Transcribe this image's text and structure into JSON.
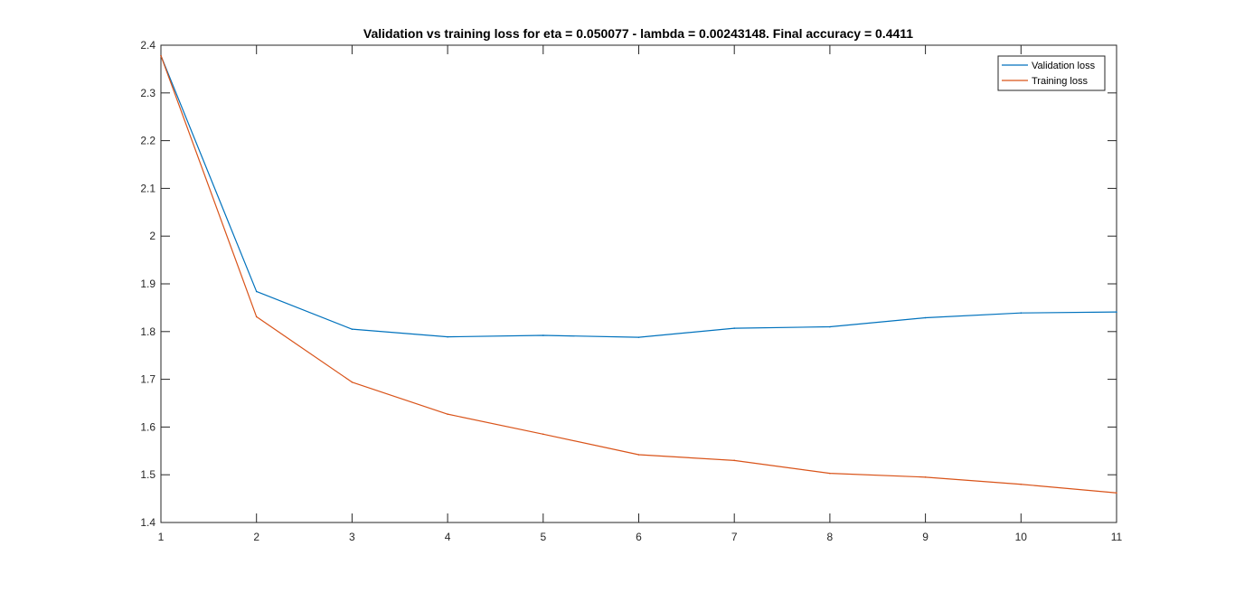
{
  "chart_data": {
    "type": "line",
    "title": "Validation vs training loss for eta = 0.050077 - lambda = 0.00243148. Final accuracy = 0.4411",
    "xlabel": "",
    "ylabel": "",
    "x": [
      1,
      2,
      3,
      4,
      5,
      6,
      7,
      8,
      9,
      10,
      11
    ],
    "xlim": [
      1,
      11
    ],
    "ylim": [
      1.4,
      2.4
    ],
    "xticks": [
      1,
      2,
      3,
      4,
      5,
      6,
      7,
      8,
      9,
      10,
      11
    ],
    "yticks": [
      1.4,
      1.5,
      1.6,
      1.7,
      1.8,
      1.9,
      2,
      2.1,
      2.2,
      2.3,
      2.4
    ],
    "xtick_labels": [
      "1",
      "2",
      "3",
      "4",
      "5",
      "6",
      "7",
      "8",
      "9",
      "10",
      "11"
    ],
    "ytick_labels": [
      "1.4",
      "1.5",
      "1.6",
      "1.7",
      "1.8",
      "1.9",
      "2",
      "2.1",
      "2.2",
      "2.3",
      "2.4"
    ],
    "grid": false,
    "legend_position": "top-right",
    "series": [
      {
        "name": "Validation loss",
        "color": "#0072bd",
        "values": [
          2.378,
          1.884,
          1.805,
          1.789,
          1.792,
          1.788,
          1.807,
          1.81,
          1.829,
          1.839,
          1.841
        ]
      },
      {
        "name": "Training loss",
        "color": "#d95319",
        "values": [
          2.378,
          1.831,
          1.694,
          1.627,
          1.585,
          1.542,
          1.53,
          1.503,
          1.495,
          1.48,
          1.462
        ]
      }
    ]
  }
}
